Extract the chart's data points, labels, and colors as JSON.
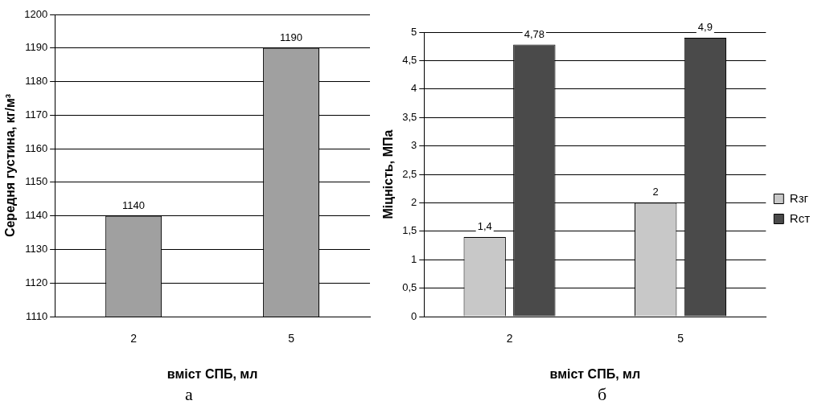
{
  "chart_data": [
    {
      "type": "bar",
      "categories": [
        "2",
        "5"
      ],
      "xlabel": "вміст СПБ, мл",
      "ylabel": "Середня густина, кг/м³",
      "series": [
        {
          "color": "#a0a0a0",
          "values": [
            1140,
            1190
          ]
        }
      ],
      "ylim": [
        1110,
        1200
      ],
      "yticks": [
        1110,
        1120,
        1130,
        1140,
        1150,
        1160,
        1170,
        1180,
        1190,
        1200
      ],
      "grid": "y",
      "data_labels": true,
      "annotations": [
        "а"
      ]
    },
    {
      "type": "bar",
      "categories": [
        "2",
        "5"
      ],
      "xlabel": "вміст СПБ, мл",
      "ylabel": "Міцність, МПа",
      "series": [
        {
          "name": "Rзг",
          "color": "#c8c8c8",
          "values": [
            1.4,
            2
          ],
          "value_labels": [
            "1,4",
            "2"
          ]
        },
        {
          "name": "Rст",
          "color": "#4a4a4a",
          "values": [
            4.78,
            4.9
          ],
          "value_labels": [
            "4,78",
            "4,9"
          ]
        }
      ],
      "ylim": [
        0,
        5
      ],
      "yticks": [
        0,
        {
          "value": 0.5,
          "label": "0,5"
        },
        1,
        {
          "value": 1.5,
          "label": "1,5"
        },
        2,
        {
          "value": 2.5,
          "label": "2,5"
        },
        3,
        {
          "value": 3.5,
          "label": "3,5"
        },
        4,
        {
          "value": 4.5,
          "label": "4,5"
        },
        5
      ],
      "grid": "y",
      "legend": "right",
      "annotations": [
        "б"
      ]
    }
  ]
}
